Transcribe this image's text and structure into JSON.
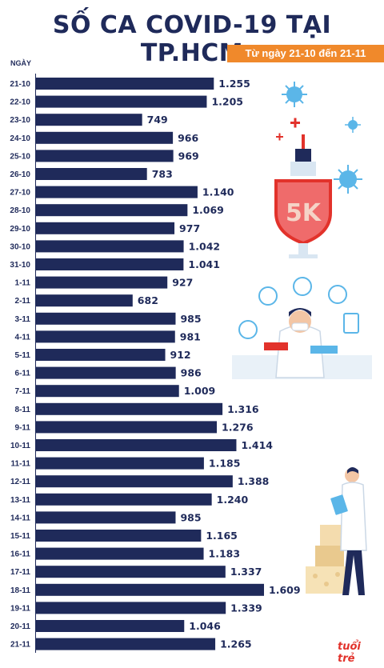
{
  "header": {
    "title": "SỐ CA COVID-19 TẠI TP.HCM",
    "subtitle": "Từ ngày 21-10 đến 21-11",
    "axis_header": "NGÀY"
  },
  "logo": {
    "text": "tuổi trẻ"
  },
  "colors": {
    "bar": "#1f2a5a",
    "accent": "#f0892b",
    "text": "#1f2a5a"
  },
  "chart_data": {
    "type": "bar",
    "orientation": "horizontal",
    "title": "SỐ CA COVID-19 TẠI TP.HCM",
    "subtitle": "Từ ngày 21-10 đến 21-11",
    "ylabel": "NGÀY",
    "categories": [
      "21-10",
      "22-10",
      "23-10",
      "24-10",
      "25-10",
      "26-10",
      "27-10",
      "28-10",
      "29-10",
      "30-10",
      "31-10",
      "1-11",
      "2-11",
      "3-11",
      "4-11",
      "5-11",
      "6-11",
      "7-11",
      "8-11",
      "9-11",
      "10-11",
      "11-11",
      "12-11",
      "13-11",
      "14-11",
      "15-11",
      "16-11",
      "17-11",
      "18-11",
      "19-11",
      "20-11",
      "21-11"
    ],
    "values": [
      1255,
      1205,
      749,
      966,
      969,
      783,
      1140,
      1069,
      977,
      1042,
      1041,
      927,
      682,
      985,
      981,
      912,
      986,
      1009,
      1316,
      1276,
      1414,
      1185,
      1388,
      1240,
      985,
      1165,
      1183,
      1337,
      1609,
      1339,
      1046,
      1265
    ],
    "value_labels": [
      "1.255",
      "1.205",
      "749",
      "966",
      "969",
      "783",
      "1.140",
      "1.069",
      "977",
      "1.042",
      "1.041",
      "927",
      "682",
      "985",
      "981",
      "912",
      "986",
      "1.009",
      "1.316",
      "1.276",
      "1.414",
      "1.185",
      "1.388",
      "1.240",
      "985",
      "1.165",
      "1.183",
      "1.337",
      "1.609",
      "1.339",
      "1.046",
      "1.265"
    ],
    "xlim": [
      0,
      1609
    ],
    "grid": false,
    "legend": "none"
  }
}
